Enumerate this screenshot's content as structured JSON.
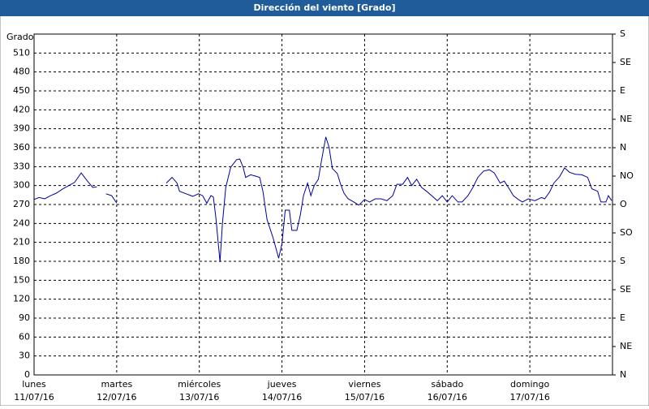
{
  "chart_data": {
    "type": "line",
    "title": "Dirección del viento [Grado]",
    "ylabel": "Grado",
    "xlim": [
      0,
      7
    ],
    "xticks": [
      {
        "value": 0,
        "label": "lunes"
      },
      {
        "value": 1,
        "label": "martes"
      },
      {
        "value": 2,
        "label": "miércoles"
      },
      {
        "value": 3,
        "label": "jueves"
      },
      {
        "value": 4,
        "label": "viernes"
      },
      {
        "value": 5,
        "label": "sábado"
      },
      {
        "value": 6,
        "label": "domingo"
      }
    ],
    "xtick_dates": [
      "11/07/16",
      "12/07/16",
      "13/07/16",
      "14/07/16",
      "15/07/16",
      "16/07/16",
      "17/07/16"
    ],
    "ylim": [
      0,
      540
    ],
    "yticks": [
      0,
      30,
      60,
      90,
      120,
      150,
      180,
      210,
      240,
      270,
      300,
      330,
      360,
      390,
      420,
      450,
      480,
      510
    ],
    "y2lim": [
      0,
      540
    ],
    "y2ticks": [
      {
        "value": 0,
        "label": "N"
      },
      {
        "value": 45,
        "label": "NE"
      },
      {
        "value": 90,
        "label": "E"
      },
      {
        "value": 135,
        "label": "SE"
      },
      {
        "value": 180,
        "label": "S"
      },
      {
        "value": 225,
        "label": "SO"
      },
      {
        "value": 270,
        "label": "O"
      },
      {
        "value": 315,
        "label": "NO"
      },
      {
        "value": 360,
        "label": "N"
      },
      {
        "value": 405,
        "label": "NE"
      },
      {
        "value": 450,
        "label": "E"
      },
      {
        "value": 495,
        "label": "SE"
      },
      {
        "value": 540,
        "label": "S"
      }
    ],
    "grid": true,
    "x": [
      0.0,
      0.06,
      0.13,
      0.2,
      0.27,
      0.35,
      0.42,
      0.49,
      0.57,
      0.64,
      0.71,
      0.76,
      0.8,
      0.87,
      0.94,
      1.0,
      1.3,
      1.6,
      1.67,
      1.73,
      1.76,
      1.84,
      1.92,
      1.99,
      2.04,
      2.09,
      2.14,
      2.17,
      2.2,
      2.25,
      2.28,
      2.32,
      2.38,
      2.45,
      2.49,
      2.53,
      2.56,
      2.62,
      2.68,
      2.73,
      2.77,
      2.82,
      2.89,
      2.96,
      3.0,
      3.04,
      3.09,
      3.12,
      3.18,
      3.22,
      3.26,
      3.31,
      3.35,
      3.39,
      3.44,
      3.48,
      3.53,
      3.57,
      3.61,
      3.67,
      3.71,
      3.75,
      3.8,
      3.87,
      3.93,
      4.0,
      4.06,
      4.13,
      4.2,
      4.27,
      4.34,
      4.39,
      4.46,
      4.52,
      4.57,
      4.63,
      4.69,
      4.75,
      4.83,
      4.88,
      4.94,
      5.0,
      5.06,
      5.13,
      5.18,
      5.25,
      5.31,
      5.37,
      5.44,
      5.51,
      5.57,
      5.64,
      5.69,
      5.75,
      5.8,
      5.86,
      5.91,
      5.98,
      6.06,
      6.14,
      6.18,
      6.24,
      6.29,
      6.36,
      6.42,
      6.48,
      6.55,
      6.63,
      6.7,
      6.75,
      6.82,
      6.86,
      6.92,
      6.95,
      6.99
    ],
    "series": [
      {
        "name": "Dirección del viento",
        "color": "#0000a0",
        "values": [
          278,
          281,
          279,
          284,
          288,
          295,
          300,
          305,
          320,
          308,
          297,
          298,
          null,
          287,
          284,
          272,
          null,
          304,
          313,
          304,
          291,
          287,
          283,
          287,
          284,
          272,
          284,
          282,
          249,
          179,
          240,
          297,
          329,
          341,
          342,
          329,
          313,
          317,
          315,
          313,
          291,
          246,
          218,
          185,
          208,
          261,
          261,
          229,
          229,
          252,
          284,
          304,
          284,
          300,
          310,
          341,
          377,
          361,
          327,
          319,
          302,
          288,
          279,
          274,
          269,
          278,
          274,
          279,
          279,
          276,
          284,
          302,
          302,
          313,
          300,
          310,
          297,
          291,
          282,
          276,
          284,
          274,
          284,
          274,
          274,
          284,
          297,
          313,
          323,
          325,
          320,
          304,
          307,
          295,
          284,
          278,
          274,
          279,
          276,
          281,
          279,
          290,
          304,
          314,
          328,
          321,
          318,
          317,
          313,
          295,
          291,
          274,
          274,
          284,
          276
        ]
      }
    ]
  }
}
